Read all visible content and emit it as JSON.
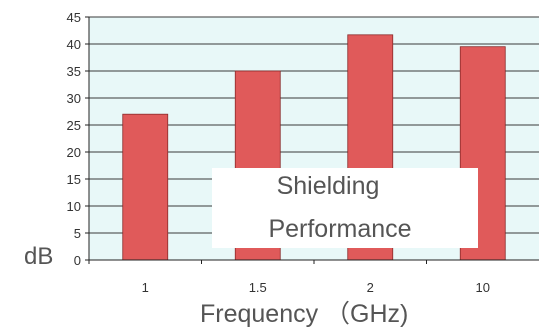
{
  "chart_data": {
    "type": "bar",
    "title": "",
    "categories": [
      "1",
      "1.5",
      "2",
      "10"
    ],
    "series": [
      {
        "values": [
          27,
          35,
          41.7,
          39.5
        ]
      }
    ],
    "ylim": [
      0,
      45
    ],
    "yticks": [
      0,
      5,
      10,
      15,
      20,
      25,
      30,
      35,
      40,
      45
    ],
    "ylabel": "dB",
    "xlabel": "Frequency （GHz)",
    "grid": true,
    "annotation": [
      "Shielding",
      "Performance"
    ],
    "colors": {
      "bar": "#e05a5a",
      "bar_edge": "#8a2a2a",
      "plot_bg": "#e8f8f8",
      "grid": "#3a3a3a",
      "axis": "#222222",
      "annotation_box": "#ffffff"
    }
  }
}
